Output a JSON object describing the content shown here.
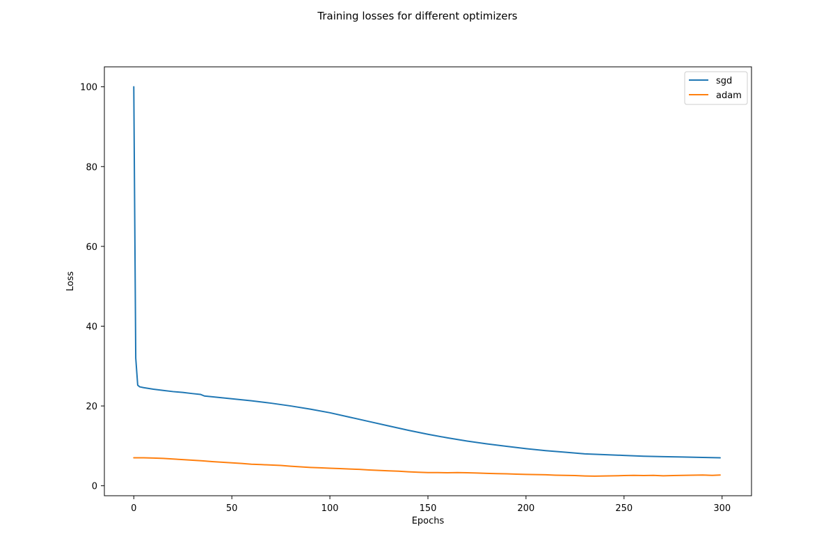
{
  "chart_data": {
    "type": "line",
    "title": "Training losses for different optimizers",
    "xlabel": "Epochs",
    "ylabel": "Loss",
    "xlim": [
      -15,
      315
    ],
    "ylim": [
      -2.5,
      105
    ],
    "x_ticks": [
      0,
      50,
      100,
      150,
      200,
      250,
      300
    ],
    "y_ticks": [
      0,
      20,
      40,
      60,
      80,
      100
    ],
    "grid": false,
    "legend_position": "top-right",
    "series": [
      {
        "name": "sgd",
        "color": "#1f77b4",
        "points": [
          [
            0,
            100
          ],
          [
            1,
            32
          ],
          [
            2,
            25.2
          ],
          [
            3,
            24.8
          ],
          [
            5,
            24.6
          ],
          [
            10,
            24.2
          ],
          [
            15,
            23.9
          ],
          [
            20,
            23.6
          ],
          [
            25,
            23.4
          ],
          [
            30,
            23.1
          ],
          [
            34,
            22.9
          ],
          [
            36,
            22.5
          ],
          [
            40,
            22.3
          ],
          [
            50,
            21.8
          ],
          [
            60,
            21.3
          ],
          [
            70,
            20.7
          ],
          [
            80,
            20.0
          ],
          [
            90,
            19.2
          ],
          [
            100,
            18.3
          ],
          [
            110,
            17.2
          ],
          [
            120,
            16.1
          ],
          [
            130,
            15.0
          ],
          [
            140,
            13.9
          ],
          [
            150,
            12.9
          ],
          [
            160,
            12.0
          ],
          [
            170,
            11.2
          ],
          [
            180,
            10.5
          ],
          [
            190,
            9.9
          ],
          [
            200,
            9.3
          ],
          [
            210,
            8.8
          ],
          [
            220,
            8.4
          ],
          [
            230,
            8.0
          ],
          [
            240,
            7.8
          ],
          [
            250,
            7.6
          ],
          [
            260,
            7.4
          ],
          [
            270,
            7.3
          ],
          [
            280,
            7.2
          ],
          [
            290,
            7.1
          ],
          [
            299,
            7.0
          ]
        ]
      },
      {
        "name": "adam",
        "color": "#ff7f0e",
        "points": [
          [
            0,
            7.0
          ],
          [
            5,
            7.0
          ],
          [
            10,
            6.95
          ],
          [
            15,
            6.85
          ],
          [
            20,
            6.7
          ],
          [
            25,
            6.55
          ],
          [
            30,
            6.4
          ],
          [
            35,
            6.25
          ],
          [
            40,
            6.05
          ],
          [
            45,
            5.9
          ],
          [
            50,
            5.75
          ],
          [
            55,
            5.6
          ],
          [
            60,
            5.4
          ],
          [
            65,
            5.3
          ],
          [
            70,
            5.2
          ],
          [
            75,
            5.1
          ],
          [
            80,
            4.9
          ],
          [
            85,
            4.75
          ],
          [
            90,
            4.6
          ],
          [
            95,
            4.5
          ],
          [
            100,
            4.4
          ],
          [
            105,
            4.3
          ],
          [
            110,
            4.2
          ],
          [
            115,
            4.1
          ],
          [
            120,
            3.95
          ],
          [
            125,
            3.85
          ],
          [
            130,
            3.75
          ],
          [
            135,
            3.65
          ],
          [
            140,
            3.5
          ],
          [
            145,
            3.4
          ],
          [
            150,
            3.3
          ],
          [
            155,
            3.3
          ],
          [
            160,
            3.25
          ],
          [
            165,
            3.3
          ],
          [
            170,
            3.25
          ],
          [
            175,
            3.2
          ],
          [
            180,
            3.1
          ],
          [
            185,
            3.05
          ],
          [
            190,
            3.0
          ],
          [
            195,
            2.9
          ],
          [
            200,
            2.85
          ],
          [
            205,
            2.8
          ],
          [
            210,
            2.75
          ],
          [
            215,
            2.65
          ],
          [
            220,
            2.6
          ],
          [
            225,
            2.55
          ],
          [
            230,
            2.45
          ],
          [
            235,
            2.4
          ],
          [
            240,
            2.45
          ],
          [
            245,
            2.5
          ],
          [
            250,
            2.55
          ],
          [
            255,
            2.6
          ],
          [
            260,
            2.55
          ],
          [
            265,
            2.6
          ],
          [
            270,
            2.5
          ],
          [
            275,
            2.55
          ],
          [
            280,
            2.6
          ],
          [
            285,
            2.65
          ],
          [
            290,
            2.7
          ],
          [
            295,
            2.6
          ],
          [
            299,
            2.7
          ]
        ]
      }
    ]
  }
}
